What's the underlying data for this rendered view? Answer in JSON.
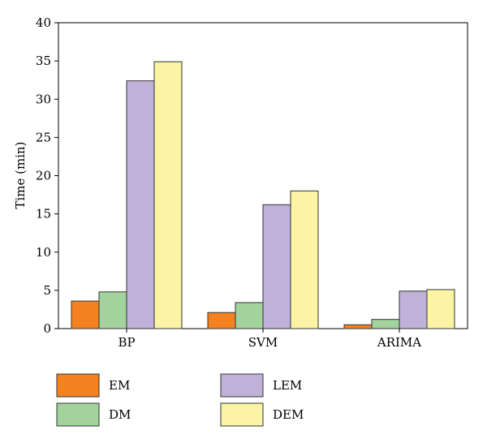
{
  "chart_data": {
    "type": "bar",
    "categories": [
      "BP",
      "SVM",
      "ARIMA"
    ],
    "series": [
      {
        "name": "EM",
        "color": "#f58220",
        "values": [
          3.6,
          2.1,
          0.5
        ]
      },
      {
        "name": "DM",
        "color": "#a2d39c",
        "values": [
          4.8,
          3.4,
          1.2
        ]
      },
      {
        "name": "LEM",
        "color": "#c0b1d8",
        "values": [
          32.4,
          16.2,
          4.9
        ]
      },
      {
        "name": "DEM",
        "color": "#fbf4a4",
        "values": [
          34.9,
          18.0,
          5.1
        ]
      }
    ],
    "xlabel": "",
    "ylabel": "Time (min)",
    "ylim": [
      0,
      40
    ],
    "yticks": [
      "0",
      "5",
      "10",
      "15",
      "20",
      "25",
      "30",
      "35",
      "40"
    ],
    "legend": {
      "placement": "bottom",
      "columns": 2
    },
    "grid": false
  }
}
